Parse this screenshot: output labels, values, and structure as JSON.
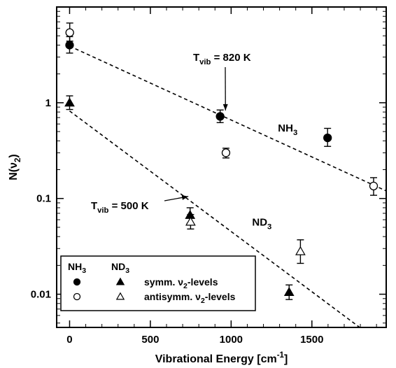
{
  "chart_data": {
    "type": "scatter",
    "x_axis": {
      "label": "Vibrational Energy [cm",
      "label_sup": "-1",
      "label_end": "]",
      "range": [
        -80,
        1960
      ],
      "ticks": [
        0,
        500,
        1000,
        1500
      ],
      "tick_labels": [
        "0",
        "500",
        "1000",
        "1500"
      ]
    },
    "y_axis": {
      "label": "N(ν",
      "label_sub": "2",
      "label_end": ")",
      "scale": "log",
      "range": [
        0.0045,
        10
      ],
      "ticks": [
        0.01,
        0.1,
        1
      ],
      "tick_labels": [
        "0.01",
        "0.1",
        "1"
      ]
    },
    "series": [
      {
        "name": "NH3 symm. ν2-levels",
        "marker": "filled-circle",
        "points": [
          {
            "x": 0,
            "y": 4.0,
            "lo": 3.3,
            "hi": 4.9
          },
          {
            "x": 932,
            "y": 0.72,
            "lo": 0.62,
            "hi": 0.84
          },
          {
            "x": 1597,
            "y": 0.43,
            "lo": 0.35,
            "hi": 0.54
          }
        ]
      },
      {
        "name": "NH3 antisymm. ν2-levels",
        "marker": "open-circle",
        "points": [
          {
            "x": 1,
            "y": 5.4,
            "lo": 4.4,
            "hi": 6.8
          },
          {
            "x": 968,
            "y": 0.3,
            "lo": 0.265,
            "hi": 0.335
          },
          {
            "x": 1882,
            "y": 0.135,
            "lo": 0.108,
            "hi": 0.165
          }
        ]
      },
      {
        "name": "ND3 symm. ν2-levels",
        "marker": "filled-triangle",
        "points": [
          {
            "x": 0,
            "y": 1.0,
            "lo": 0.85,
            "hi": 1.18
          },
          {
            "x": 746,
            "y": 0.067,
            "lo": 0.055,
            "hi": 0.08
          },
          {
            "x": 1359,
            "y": 0.0105,
            "lo": 0.0088,
            "hi": 0.0125
          }
        ]
      },
      {
        "name": "ND3 antisymm. ν2-levels",
        "marker": "open-triangle",
        "points": [
          {
            "x": 749,
            "y": 0.057,
            "lo": 0.048,
            "hi": 0.068
          },
          {
            "x": 1429,
            "y": 0.028,
            "lo": 0.021,
            "hi": 0.037
          }
        ]
      }
    ],
    "fit_lines": [
      {
        "name": "NH3 fit",
        "x": [
          0,
          1960
        ],
        "y": [
          3.9,
          0.12
        ]
      },
      {
        "name": "ND3 fit",
        "x": [
          0,
          1960
        ],
        "y": [
          0.82,
          0.0028
        ]
      }
    ],
    "annotations": [
      {
        "id": "nh3-temp",
        "text": "T",
        "sub": "vib",
        "rest": " = 820 K",
        "arrow_to": {
          "x": 965,
          "y": 0.83
        }
      },
      {
        "id": "nd3-temp",
        "text": "T",
        "sub": "vib",
        "rest": " = 500 K",
        "arrow_to": {
          "x": 735,
          "y": 0.105
        }
      }
    ],
    "series_labels": [
      {
        "id": "nh3",
        "text": "NH",
        "sub": "3",
        "x": 1290,
        "y": 0.5
      },
      {
        "id": "nd3",
        "text": "ND",
        "sub": "3",
        "x": 1130,
        "y": 0.052
      }
    ],
    "legend": {
      "position": "bottom-left",
      "headers": [
        {
          "text": "NH",
          "sub": "3"
        },
        {
          "text": "ND",
          "sub": "3"
        }
      ],
      "rows": [
        {
          "text": "symm. ν",
          "sub": "2",
          "rest": "-levels",
          "markers": [
            "filled-circle",
            "filled-triangle"
          ]
        },
        {
          "text": "antisymm. ν",
          "sub": "2",
          "rest": "-levels",
          "markers": [
            "open-circle",
            "open-triangle"
          ]
        }
      ]
    },
    "grid": false
  }
}
